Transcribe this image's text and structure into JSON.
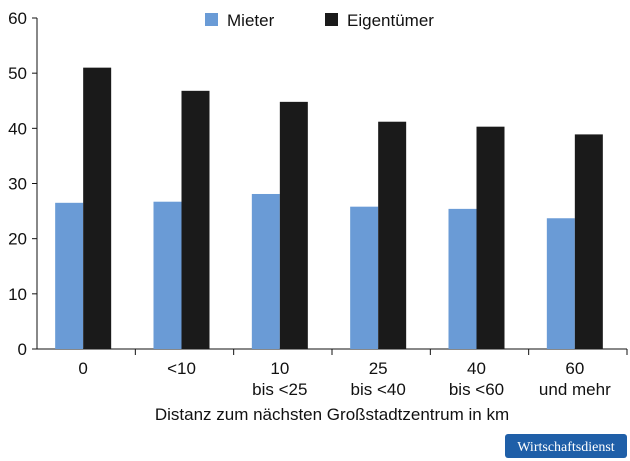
{
  "chart_data": {
    "type": "bar",
    "x_label": "Distanz zum nächsten Großstadtzentrum in km",
    "categories": [
      "0",
      "<10",
      "10\nbis <25",
      "25\nbis <40",
      "40\nbis <60",
      "60\nund mehr"
    ],
    "series": [
      {
        "name": "Mieter",
        "color": "#6a9bd6",
        "values": [
          26.5,
          26.7,
          28.1,
          25.8,
          25.4,
          23.7
        ]
      },
      {
        "name": "Eigentümer",
        "color": "#1a1a1a",
        "values": [
          51,
          46.8,
          44.8,
          41.2,
          40.3,
          38.9
        ]
      }
    ],
    "ylim": [
      0,
      60
    ],
    "yticks": [
      0,
      10,
      20,
      30,
      40,
      50,
      60
    ],
    "legend": "top"
  },
  "badge": "Wirtschaftsdienst"
}
